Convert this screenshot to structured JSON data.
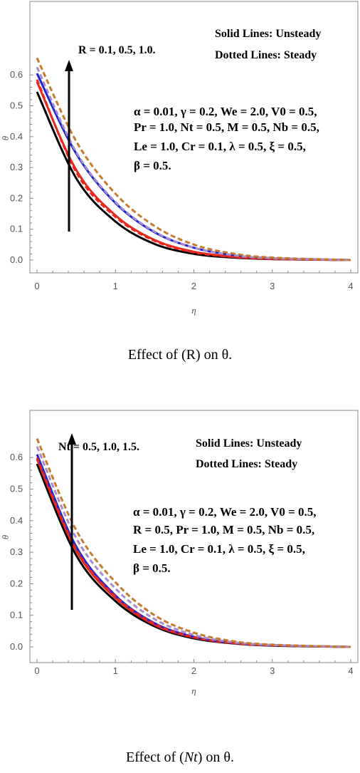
{
  "colors": {
    "black": "#000000",
    "red": "#e8281e",
    "blue": "#1c25d4",
    "orange": "#c77a2b",
    "purple": "#a98cd0",
    "frame": "#888888"
  },
  "chart_data": [
    {
      "type": "line",
      "xlabel": "η",
      "ylabel": "θ",
      "xlim": [
        0,
        4
      ],
      "ylim": [
        -0.015,
        0.68
      ],
      "xticks": [
        "0",
        "1",
        "2",
        "3",
        "4"
      ],
      "yticks": [
        "0.0",
        "0.1",
        "0.2",
        "0.3",
        "0.4",
        "0.5",
        "0.6"
      ],
      "annotation_param": "R = 0.1, 0.5, 1.0.",
      "legend_solid": "Solid Lines: Unsteady",
      "legend_dotted": "Dotted Lines: Steady",
      "params": [
        "α = 0.01, γ = 0.2, We = 2.0, V0 = 0.5,",
        "Pr = 1.0, Nt = 0.5, M = 0.5, Nb = 0.5,",
        "Le = 1.0, Cr = 0.1, λ = 0.5, ξ = 0.5,",
        "β = 0.5."
      ],
      "grid": false,
      "series": [
        {
          "style": "solid",
          "color": "black",
          "values": [
            [
              0,
              0.545
            ],
            [
              0.5,
              0.265
            ],
            [
              1,
              0.125
            ],
            [
              1.5,
              0.052
            ],
            [
              2,
              0.02
            ],
            [
              2.5,
              0.008
            ],
            [
              3,
              0.003
            ],
            [
              4,
              0.0
            ]
          ]
        },
        {
          "style": "solid",
          "color": "red",
          "values": [
            [
              0,
              0.578
            ],
            [
              0.5,
              0.292
            ],
            [
              1,
              0.145
            ],
            [
              1.5,
              0.065
            ],
            [
              2,
              0.027
            ],
            [
              2.5,
              0.011
            ],
            [
              3,
              0.004
            ],
            [
              4,
              0.0
            ]
          ]
        },
        {
          "style": "solid",
          "color": "blue",
          "values": [
            [
              0,
              0.605
            ],
            [
              0.5,
              0.345
            ],
            [
              1,
              0.185
            ],
            [
              1.5,
              0.09
            ],
            [
              2,
              0.04
            ],
            [
              2.5,
              0.016
            ],
            [
              3,
              0.006
            ],
            [
              4,
              0.0
            ]
          ]
        },
        {
          "style": "dashed",
          "color": "red",
          "values": [
            [
              0,
              0.585
            ],
            [
              0.5,
              0.285
            ],
            [
              1,
              0.14
            ],
            [
              1.5,
              0.062
            ],
            [
              2,
              0.025
            ],
            [
              2.5,
              0.01
            ],
            [
              3,
              0.004
            ],
            [
              4,
              0.0
            ]
          ]
        },
        {
          "style": "dashed",
          "color": "purple",
          "values": [
            [
              0,
              0.625
            ],
            [
              0.5,
              0.35
            ],
            [
              1,
              0.188
            ],
            [
              1.5,
              0.092
            ],
            [
              2,
              0.04
            ],
            [
              2.5,
              0.016
            ],
            [
              3,
              0.006
            ],
            [
              4,
              0.0
            ]
          ]
        },
        {
          "style": "dashed",
          "color": "orange",
          "values": [
            [
              0,
              0.655
            ],
            [
              0.5,
              0.385
            ],
            [
              1,
              0.215
            ],
            [
              1.5,
              0.11
            ],
            [
              2,
              0.05
            ],
            [
              2.5,
              0.021
            ],
            [
              3,
              0.008
            ],
            [
              4,
              0.0
            ]
          ]
        }
      ]
    },
    {
      "type": "line",
      "xlabel": "η",
      "ylabel": "θ",
      "xlim": [
        0,
        4
      ],
      "ylim": [
        -0.015,
        0.68
      ],
      "xticks": [
        "0",
        "1",
        "2",
        "3",
        "4"
      ],
      "yticks": [
        "0.0",
        "0.1",
        "0.2",
        "0.3",
        "0.4",
        "0.5",
        "0.6"
      ],
      "annotation_param": "Nt = 0.5, 1.0, 1.5.",
      "legend_solid": "Solid Lines: Unsteady",
      "legend_dotted": "Dotted Lines: Steady",
      "params": [
        "α = 0.01, γ = 0.2, We = 2.0, V0 = 0.5,",
        "R = 0.5, Pr = 1.0, M = 0.5, Nb = 0.5,",
        "Le = 1.0, Cr = 0.1, λ = 0.5, ξ = 0.5,",
        "β = 0.5."
      ],
      "grid": false,
      "series": [
        {
          "style": "solid",
          "color": "black",
          "values": [
            [
              0,
              0.58
            ],
            [
              0.5,
              0.29
            ],
            [
              1,
              0.145
            ],
            [
              1.5,
              0.065
            ],
            [
              2,
              0.027
            ],
            [
              2.5,
              0.011
            ],
            [
              3,
              0.004
            ],
            [
              4,
              0.0
            ]
          ]
        },
        {
          "style": "solid",
          "color": "red",
          "values": [
            [
              0,
              0.595
            ],
            [
              0.5,
              0.305
            ],
            [
              1,
              0.155
            ],
            [
              1.5,
              0.07
            ],
            [
              2,
              0.03
            ],
            [
              2.5,
              0.012
            ],
            [
              3,
              0.005
            ],
            [
              4,
              0.0
            ]
          ]
        },
        {
          "style": "solid",
          "color": "blue",
          "values": [
            [
              0,
              0.61
            ],
            [
              0.5,
              0.318
            ],
            [
              1,
              0.163
            ],
            [
              1.5,
              0.075
            ],
            [
              2,
              0.032
            ],
            [
              2.5,
              0.013
            ],
            [
              3,
              0.005
            ],
            [
              4,
              0.0
            ]
          ]
        },
        {
          "style": "dashed",
          "color": "red",
          "values": [
            [
              0,
              0.6
            ],
            [
              0.5,
              0.31
            ],
            [
              1,
              0.16
            ],
            [
              1.5,
              0.073
            ],
            [
              2,
              0.031
            ],
            [
              2.5,
              0.012
            ],
            [
              3,
              0.005
            ],
            [
              4,
              0.0
            ]
          ]
        },
        {
          "style": "dashed",
          "color": "purple",
          "values": [
            [
              0,
              0.635
            ],
            [
              0.5,
              0.345
            ],
            [
              1,
              0.185
            ],
            [
              1.5,
              0.088
            ],
            [
              2,
              0.038
            ],
            [
              2.5,
              0.015
            ],
            [
              3,
              0.006
            ],
            [
              4,
              0.0
            ]
          ]
        },
        {
          "style": "dashed",
          "color": "orange",
          "values": [
            [
              0,
              0.66
            ],
            [
              0.5,
              0.37
            ],
            [
              1,
              0.205
            ],
            [
              1.5,
              0.1
            ],
            [
              2,
              0.045
            ],
            [
              2.5,
              0.018
            ],
            [
              3,
              0.007
            ],
            [
              4,
              0.0
            ]
          ]
        }
      ]
    }
  ],
  "captions": [
    {
      "pre": "Effect of (R) on θ.",
      "italic": "",
      "post": ""
    },
    {
      "pre": "Effect of (",
      "italic": "Nt",
      "post": ") on θ."
    }
  ]
}
